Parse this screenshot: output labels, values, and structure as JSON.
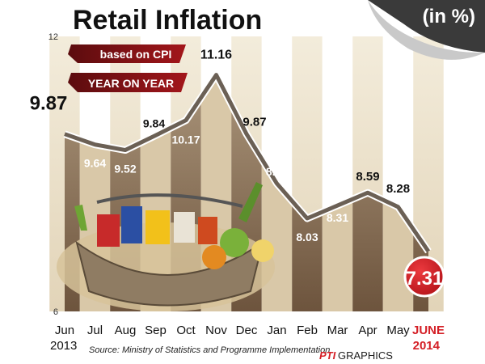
{
  "header": {
    "title": "Retail Inflation",
    "unit": "(in %)",
    "badge_cpi": "based on CPI",
    "badge_yoy": "YEAR ON YEAR"
  },
  "footer": {
    "source": "Source: Ministry of Statistics and Programme Implementation",
    "credit_pti": "PTI",
    "credit_graphics": "GRAPHICS",
    "year_start": "2013",
    "year_end": "2014"
  },
  "colors": {
    "line": "#6b6055",
    "highlight": "#d41f26",
    "month_highlight": "#d41f26",
    "band_dark": "#8a6f55",
    "band_light": "#efe7d4"
  },
  "chart_data": {
    "type": "line",
    "title": "Retail Inflation",
    "x": [
      "Jun",
      "Jul",
      "Aug",
      "Sep",
      "Oct",
      "Nov",
      "Dec",
      "Jan",
      "Feb",
      "Mar",
      "Apr",
      "May",
      "JUNE"
    ],
    "series": [
      {
        "values": [
          9.87,
          9.64,
          9.52,
          9.84,
          10.17,
          11.16,
          9.87,
          8.79,
          8.03,
          8.31,
          8.59,
          8.28,
          7.31
        ]
      }
    ],
    "data_labels": [
      "9.87",
      "9.64",
      "9.52",
      "9.84",
      "10.17",
      "11.16",
      "9.87",
      "8.79",
      "8.03",
      "8.31",
      "8.59",
      "8.28",
      "7.31"
    ],
    "yticks": [
      "12",
      "6"
    ],
    "ylim": [
      6,
      12
    ],
    "grid": false,
    "highlight_last": true
  }
}
